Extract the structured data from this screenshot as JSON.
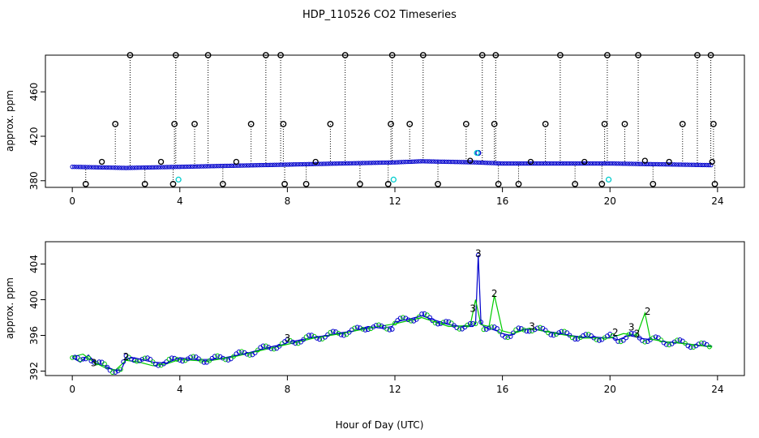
{
  "chart_data": {
    "title": "HDP_110526  CO2 Timeseries",
    "xlabel": "Hour of Day (UTC)",
    "colors": {
      "axis": "#000000",
      "series_blue": "#0000cc",
      "series_green": "#00cc00",
      "series_cyan": "#00cccc",
      "outlier": "#000000"
    },
    "panels": [
      {
        "type": "scatter",
        "ylabel": "approx. ppm",
        "xlim": [
          -1,
          25
        ],
        "ylim": [
          374,
          493
        ],
        "xticks": [
          0,
          4,
          8,
          12,
          16,
          20,
          24
        ],
        "yticks": [
          380,
          420,
          460
        ],
        "upper_outlier_hours": [
          2.15,
          3.85,
          5.05,
          7.2,
          7.75,
          10.15,
          11.9,
          13.05,
          15.25,
          15.75,
          18.15,
          19.9,
          21.05,
          23.25,
          23.75
        ],
        "upper_outlier_value": 493,
        "mid_outlier_hours": [
          1.6,
          3.8,
          4.55,
          6.65,
          7.85,
          9.6,
          11.85,
          12.55,
          14.65,
          15.7,
          17.6,
          19.8,
          20.55,
          22.7,
          23.85
        ],
        "mid_outlier_value": 431,
        "low_outlier_hours": [
          0.5,
          2.7,
          3.75,
          5.6,
          7.9,
          8.7,
          10.7,
          11.75,
          13.6,
          15.85,
          16.6,
          18.7,
          19.7,
          21.6,
          23.9
        ],
        "low_outlier_value": 377,
        "cyan_points": [
          [
            3.95,
            381
          ],
          [
            11.95,
            381
          ],
          [
            19.95,
            381
          ],
          [
            15.05,
            405
          ]
        ],
        "near_points": [
          [
            1.1,
            397
          ],
          [
            3.3,
            397
          ],
          [
            6.1,
            397
          ],
          [
            9.05,
            397
          ],
          [
            14.8,
            398
          ],
          [
            15.1,
            405
          ],
          [
            17.05,
            397
          ],
          [
            19.05,
            397
          ],
          [
            21.3,
            398
          ],
          [
            22.2,
            397
          ],
          [
            23.8,
            397
          ]
        ]
      },
      {
        "type": "line",
        "ylabel": "approx. ppm",
        "xlim": [
          -1,
          25
        ],
        "ylim": [
          391.5,
          406.5
        ],
        "xticks": [
          0,
          4,
          8,
          12,
          16,
          20,
          24
        ],
        "yticks": [
          392,
          396,
          400,
          404
        ],
        "series": [
          {
            "name": "blue",
            "x": [
              0,
              0.3,
              0.6,
              0.9,
              1.2,
              1.5,
              1.8,
              2.0,
              2.3,
              2.7,
              3.0,
              3.5,
              4.0,
              4.5,
              5.0,
              5.5,
              6.0,
              6.5,
              7.0,
              7.5,
              7.9,
              8.0,
              8.5,
              9.0,
              9.5,
              10.0,
              10.5,
              11.0,
              11.5,
              11.9,
              12.0,
              12.5,
              13.0,
              13.5,
              14.0,
              14.5,
              14.9,
              15.0,
              15.1,
              15.2,
              15.3,
              15.5,
              15.8,
              16.0,
              16.3,
              16.6,
              17.0,
              17.5,
              18.0,
              18.5,
              19.0,
              19.5,
              19.9,
              20.0,
              20.3,
              20.7,
              21.0,
              21.3,
              21.7,
              22.0,
              22.5,
              23.0,
              23.5,
              23.8
            ],
            "y": [
              393.5,
              393.0,
              393.8,
              392.8,
              392.6,
              392.2,
              392.0,
              393.4,
              393.5,
              393.2,
              393.0,
              392.9,
              393.5,
              393.3,
              393.3,
              393.4,
              393.7,
              394.0,
              394.4,
              394.8,
              395.0,
              395.2,
              395.5,
              395.8,
              396.0,
              396.3,
              396.5,
              397.0,
              396.8,
              397.0,
              397.5,
              397.8,
              398.2,
              397.7,
              397.2,
              397.0,
              397.0,
              397.3,
              405.0,
              397.5,
              397.0,
              396.8,
              396.5,
              396.2,
              396.0,
              396.5,
              396.8,
              396.5,
              396.3,
              396.0,
              395.8,
              395.8,
              395.7,
              395.8,
              395.5,
              396.0,
              395.8,
              395.6,
              395.5,
              395.3,
              395.2,
              395.0,
              394.8,
              394.8
            ]
          },
          {
            "name": "green",
            "x": [
              0,
              0.4,
              0.8,
              1.2,
              1.6,
              2.0,
              2.5,
              3.0,
              3.5,
              4.0,
              5.0,
              6.0,
              7.0,
              8.0,
              9.0,
              10.0,
              11.0,
              12.0,
              13.0,
              14.0,
              14.8,
              15.0,
              15.2,
              15.5,
              15.7,
              16.0,
              16.4,
              17.0,
              18.0,
              19.0,
              20.0,
              20.5,
              21.0,
              21.3,
              21.5,
              22.0,
              23.0,
              23.8
            ],
            "y": [
              393.6,
              393.9,
              393.0,
              392.4,
              392.1,
              393.2,
              393.0,
              392.6,
              392.8,
              393.3,
              393.1,
              393.6,
              394.3,
              395.0,
              395.7,
              396.2,
              396.8,
              397.3,
              398.0,
              397.0,
              397.1,
              400.0,
              397.2,
              397.0,
              400.5,
              396.5,
              396.2,
              396.8,
              396.2,
              395.7,
              395.7,
              396.2,
              396.0,
              398.5,
              395.6,
              395.3,
              395.0,
              394.7
            ]
          }
        ],
        "annotations": [
          {
            "text": "3",
            "x": 15.1,
            "y": 405.2,
            "color": "#0000cc"
          },
          {
            "text": "2",
            "x": 15.7,
            "y": 400.7,
            "color": "#00cc00"
          },
          {
            "text": "3",
            "x": 14.9,
            "y": 399.0,
            "color": "#0000cc"
          },
          {
            "text": "2",
            "x": 21.4,
            "y": 398.7,
            "color": "#00cc00"
          },
          {
            "text": "3",
            "x": 17.1,
            "y": 397.0,
            "color": "#0000cc"
          },
          {
            "text": "3",
            "x": 20.8,
            "y": 396.9,
            "color": "#0000cc"
          },
          {
            "text": "2",
            "x": 20.2,
            "y": 396.3,
            "color": "#00cc00"
          },
          {
            "text": "3",
            "x": 21.0,
            "y": 396.2,
            "color": "#0000cc"
          },
          {
            "text": "3",
            "x": 8.0,
            "y": 395.7,
            "color": "#0000cc"
          },
          {
            "text": "2",
            "x": 2.0,
            "y": 393.6,
            "color": "#00cc00"
          },
          {
            "text": "3",
            "x": 0.8,
            "y": 392.9,
            "color": "#0000cc"
          }
        ]
      }
    ]
  }
}
